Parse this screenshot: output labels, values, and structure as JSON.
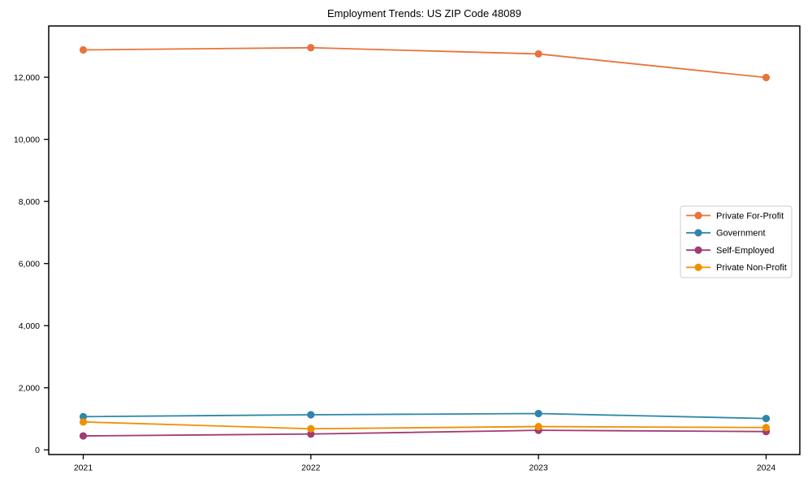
{
  "figure": {
    "background": "#ffffff"
  },
  "chart_data": {
    "type": "line",
    "title": "Employment Trends: US ZIP Code 48089",
    "xlabel": "",
    "ylabel": "",
    "categories": [
      "2021",
      "2022",
      "2023",
      "2024"
    ],
    "series": [
      {
        "name": "Private For-Profit",
        "color": "#E8743B",
        "values": [
          12880,
          12950,
          12750,
          11990
        ]
      },
      {
        "name": "Government",
        "color": "#2E86AB",
        "values": [
          1070,
          1130,
          1170,
          1010
        ]
      },
      {
        "name": "Self-Employed",
        "color": "#A23B72",
        "values": [
          450,
          510,
          630,
          590
        ]
      },
      {
        "name": "Private Non-Profit",
        "color": "#F18F01",
        "values": [
          900,
          680,
          750,
          720
        ]
      }
    ],
    "ylim": [
      -150,
      13650
    ],
    "yticks": [
      0,
      2000,
      4000,
      6000,
      8000,
      10000,
      12000
    ],
    "ytick_labels": [
      "0",
      "2,000",
      "4,000",
      "6,000",
      "8,000",
      "10,000",
      "12,000"
    ],
    "grid": false,
    "legend": {
      "position": "center right",
      "entries": [
        "Private For-Profit",
        "Government",
        "Self-Employed",
        "Private Non-Profit"
      ]
    },
    "style": {
      "axis_color": "#000000",
      "tick_label_color": "#000000",
      "legend_border_color": "#cccccc",
      "legend_background": "#ffffff",
      "plot_background": "#ffffff"
    }
  }
}
